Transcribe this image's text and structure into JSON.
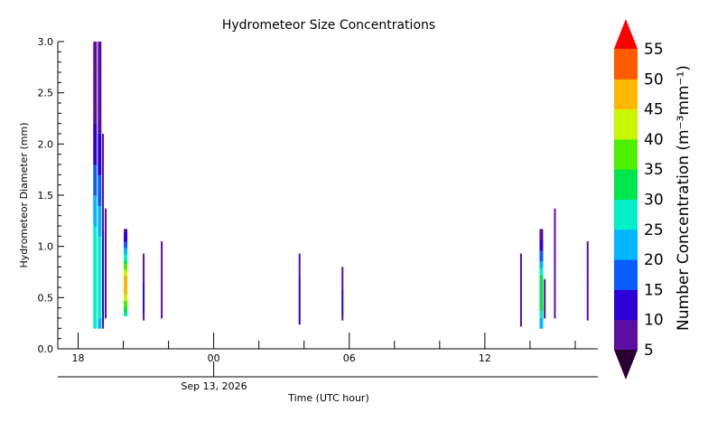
{
  "chart_data": {
    "type": "heatmap",
    "title": "Hydrometeor Size Concentrations",
    "ylabel": "Hydrometeor Diameter (mm)",
    "xlabel": "Time (UTC hour)",
    "date_label": "Sep 13, 2026",
    "x_tick_labels": [
      "18",
      "00",
      "06",
      "12"
    ],
    "x_tick_hours": [
      18,
      24,
      30,
      36
    ],
    "xlim_hours": [
      17.1,
      41.0
    ],
    "y_ticks": [
      0.0,
      0.5,
      1.0,
      1.5,
      2.0,
      2.5,
      3.0
    ],
    "y_tick_labels": [
      "0.0",
      "0.5",
      "1.0",
      "1.5",
      "2.0",
      "2.5",
      "3.0"
    ],
    "ylim": [
      0.0,
      3.0
    ],
    "colorbar": {
      "label": "Number Concentration (m⁻³mm⁻¹)",
      "levels": [
        5,
        10,
        15,
        20,
        25,
        30,
        35,
        40,
        45,
        50,
        55
      ],
      "tick_labels": [
        "5",
        "10",
        "15",
        "20",
        "25",
        "30",
        "35",
        "40",
        "45",
        "50",
        "55"
      ],
      "colors": [
        "#5a0fa0",
        "#2e00d8",
        "#0a5cff",
        "#00b8ff",
        "#00f0c8",
        "#00e64c",
        "#4cf000",
        "#c8f500",
        "#ffb800",
        "#ff5a00"
      ],
      "under_color": "#2a0033",
      "over_color": "#ff0000"
    },
    "series": [
      {
        "time_hour": 18.75,
        "diameter_range": [
          0.2,
          3.0
        ],
        "peak": 30
      },
      {
        "time_hour": 18.95,
        "diameter_range": [
          0.2,
          3.0
        ],
        "peak": 27
      },
      {
        "time_hour": 19.1,
        "diameter_range": [
          0.2,
          2.1
        ],
        "peak": 12
      },
      {
        "time_hour": 19.22,
        "diameter_range": [
          0.3,
          1.37
        ],
        "peak": 8
      },
      {
        "time_hour": 20.1,
        "diameter_range": [
          0.32,
          1.17
        ],
        "peak": 48
      },
      {
        "time_hour": 20.9,
        "diameter_range": [
          0.28,
          0.93
        ],
        "peak": 12
      },
      {
        "time_hour": 21.7,
        "diameter_range": [
          0.3,
          1.05
        ],
        "peak": 8
      },
      {
        "time_hour": 27.8,
        "diameter_range": [
          0.24,
          0.93
        ],
        "peak": 15
      },
      {
        "time_hour": 29.7,
        "diameter_range": [
          0.28,
          0.8
        ],
        "peak": 12
      },
      {
        "time_hour": 37.6,
        "diameter_range": [
          0.22,
          0.93
        ],
        "peak": 8
      },
      {
        "time_hour": 38.5,
        "diameter_range": [
          0.2,
          1.17
        ],
        "peak": 35
      },
      {
        "time_hour": 38.65,
        "diameter_range": [
          0.3,
          0.68
        ],
        "peak": 8
      },
      {
        "time_hour": 39.1,
        "diameter_range": [
          0.3,
          1.37
        ],
        "peak": 8
      },
      {
        "time_hour": 40.55,
        "diameter_range": [
          0.28,
          1.05
        ],
        "peak": 8
      }
    ]
  }
}
